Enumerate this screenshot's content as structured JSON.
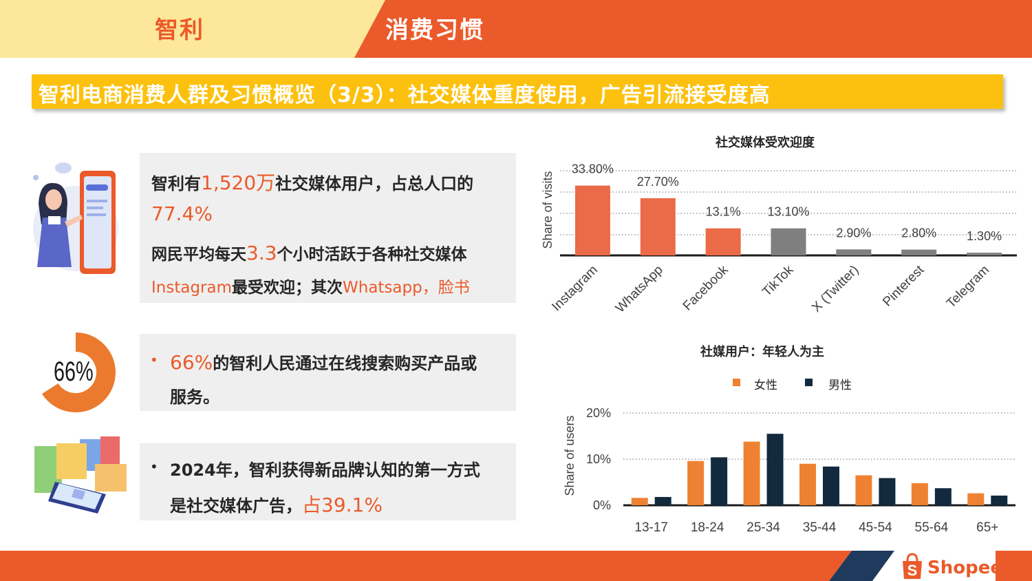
{
  "header": {
    "country": "智利",
    "topic": "消费习惯"
  },
  "title": "智利电商消费人群及习惯概览（3/3）：社交媒体重度使用，广告引流接受度高",
  "box1": {
    "l1_a": "智利有",
    "l1_b": "1,520万",
    "l1_c": "社交媒体用户，占总人口的",
    "l2": "77.4%",
    "l3_a": "网民平均每天",
    "l3_b": "3.3",
    "l3_c": "个小时活跃于各种社交媒体",
    "l4_a": "Instagram",
    "l4_b": "最受欢迎；其次",
    "l4_c": "Whatsapp，脸书"
  },
  "box2": {
    "bullet": "•",
    "l1_a": "66%",
    "l1_b": "的智利人民通过在线搜索购买产品或",
    "l2": "服务。",
    "donut_label": "66%",
    "donut_value": 66
  },
  "box3": {
    "bullet": "•",
    "l1": "2024年，智利获得新品牌认知的第一方式",
    "l2_a": "是社交媒体广告，",
    "l2_b": "占39.1%"
  },
  "brand": {
    "name": "Shopee",
    "icon_letter": "S"
  },
  "colors": {
    "orange": "#eb5a2a",
    "yellow": "#fcc10e",
    "pale_yellow": "#fde79a",
    "navy": "#13293d",
    "gray": "#7f7f7f",
    "female": "#ee8232"
  },
  "chart_data": [
    {
      "type": "bar",
      "title": "社交媒体受欢迎度",
      "ylabel": "Share of visits",
      "xlabel": "",
      "categories": [
        "Instagram",
        "WhatsApp",
        "Facebook",
        "TikTok",
        "X (Twitter)",
        "Pinterest",
        "Telegram"
      ],
      "values": [
        33.8,
        27.7,
        13.1,
        13.1,
        2.9,
        2.8,
        1.3
      ],
      "value_labels": [
        "33.80%",
        "27.70%",
        "13.1%",
        "13.10%",
        "2.90%",
        "2.80%",
        "1.30%"
      ],
      "bar_colors": [
        "#eb6a47",
        "#eb6a47",
        "#eb6a47",
        "#7f7f7f",
        "#7f7f7f",
        "#7f7f7f",
        "#7f7f7f"
      ],
      "ylim": [
        0,
        40
      ],
      "grid": true,
      "legend": false
    },
    {
      "type": "bar",
      "title": "社媒用户：年轻人为主",
      "ylabel": "Share of users",
      "xlabel": "",
      "categories": [
        "13-17",
        "18-24",
        "25-34",
        "35-44",
        "45-54",
        "55-64",
        "65+"
      ],
      "series": [
        {
          "name": "女性",
          "color": "#ee8232",
          "values": [
            1.6,
            9.6,
            13.8,
            9.0,
            6.5,
            4.8,
            2.6
          ]
        },
        {
          "name": "男性",
          "color": "#13293d",
          "values": [
            1.8,
            10.4,
            15.5,
            8.4,
            5.9,
            3.7,
            2.1
          ]
        }
      ],
      "yticks": [
        "0%",
        "10%",
        "20%"
      ],
      "ylim": [
        0,
        20
      ],
      "grid": true,
      "legend": "top-center"
    }
  ]
}
